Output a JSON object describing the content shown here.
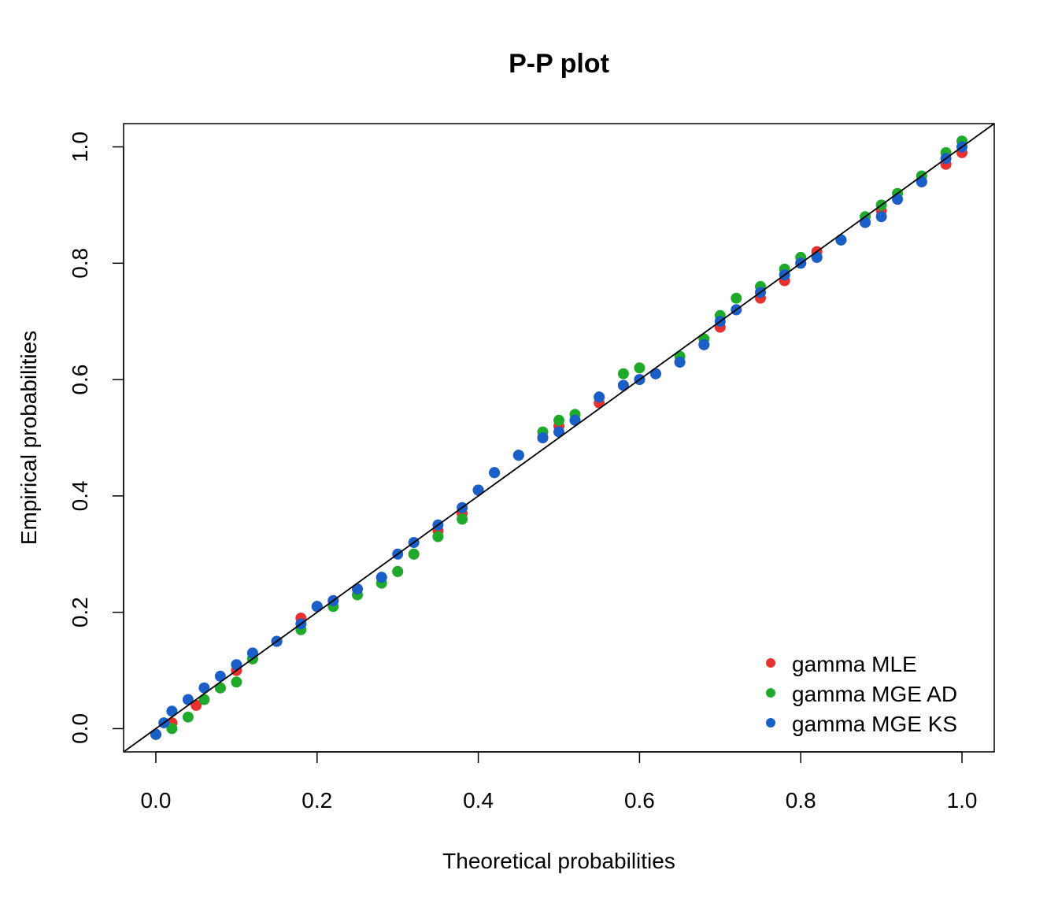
{
  "chart_data": {
    "type": "scatter",
    "title": "P-P plot",
    "xlabel": "Theoretical probabilities",
    "ylabel": "Empirical probabilities",
    "xlim": [
      -0.04,
      1.04
    ],
    "ylim": [
      -0.04,
      1.04
    ],
    "xticks": [
      "0.0",
      "0.2",
      "0.4",
      "0.6",
      "0.8",
      "1.0"
    ],
    "yticks": [
      "0.0",
      "0.2",
      "0.4",
      "0.6",
      "0.8",
      "1.0"
    ],
    "grid": false,
    "legend_position": "bottom-right",
    "reference_line": {
      "from": [
        -0.04,
        -0.04
      ],
      "to": [
        1.04,
        1.04
      ],
      "color": "#000000"
    },
    "series": [
      {
        "name": "gamma MLE",
        "color": "#e8312f",
        "points": [
          [
            0.0,
            -0.01
          ],
          [
            0.02,
            0.01
          ],
          [
            0.05,
            0.04
          ],
          [
            0.08,
            0.07
          ],
          [
            0.1,
            0.1
          ],
          [
            0.12,
            0.12
          ],
          [
            0.15,
            0.15
          ],
          [
            0.18,
            0.19
          ],
          [
            0.2,
            0.21
          ],
          [
            0.22,
            0.22
          ],
          [
            0.25,
            0.24
          ],
          [
            0.28,
            0.26
          ],
          [
            0.3,
            0.27
          ],
          [
            0.32,
            0.3
          ],
          [
            0.35,
            0.34
          ],
          [
            0.38,
            0.37
          ],
          [
            0.4,
            0.41
          ],
          [
            0.42,
            0.44
          ],
          [
            0.45,
            0.47
          ],
          [
            0.48,
            0.5
          ],
          [
            0.5,
            0.52
          ],
          [
            0.52,
            0.53
          ],
          [
            0.55,
            0.56
          ],
          [
            0.58,
            0.59
          ],
          [
            0.6,
            0.6
          ],
          [
            0.62,
            0.61
          ],
          [
            0.65,
            0.63
          ],
          [
            0.68,
            0.66
          ],
          [
            0.7,
            0.69
          ],
          [
            0.72,
            0.72
          ],
          [
            0.75,
            0.74
          ],
          [
            0.78,
            0.77
          ],
          [
            0.8,
            0.8
          ],
          [
            0.82,
            0.82
          ],
          [
            0.85,
            0.84
          ],
          [
            0.88,
            0.87
          ],
          [
            0.9,
            0.89
          ],
          [
            0.92,
            0.91
          ],
          [
            0.95,
            0.94
          ],
          [
            0.98,
            0.97
          ],
          [
            1.0,
            0.99
          ]
        ]
      },
      {
        "name": "gamma MGE AD",
        "color": "#1faa2c",
        "points": [
          [
            0.0,
            -0.01
          ],
          [
            0.02,
            0.0
          ],
          [
            0.04,
            0.02
          ],
          [
            0.06,
            0.05
          ],
          [
            0.08,
            0.07
          ],
          [
            0.1,
            0.08
          ],
          [
            0.12,
            0.12
          ],
          [
            0.15,
            0.15
          ],
          [
            0.18,
            0.17
          ],
          [
            0.2,
            0.21
          ],
          [
            0.22,
            0.21
          ],
          [
            0.25,
            0.23
          ],
          [
            0.28,
            0.25
          ],
          [
            0.3,
            0.27
          ],
          [
            0.32,
            0.3
          ],
          [
            0.35,
            0.33
          ],
          [
            0.38,
            0.36
          ],
          [
            0.4,
            0.41
          ],
          [
            0.42,
            0.44
          ],
          [
            0.45,
            0.47
          ],
          [
            0.48,
            0.51
          ],
          [
            0.5,
            0.53
          ],
          [
            0.52,
            0.54
          ],
          [
            0.55,
            0.57
          ],
          [
            0.58,
            0.61
          ],
          [
            0.6,
            0.62
          ],
          [
            0.62,
            0.61
          ],
          [
            0.65,
            0.64
          ],
          [
            0.68,
            0.67
          ],
          [
            0.7,
            0.71
          ],
          [
            0.72,
            0.74
          ],
          [
            0.75,
            0.76
          ],
          [
            0.78,
            0.79
          ],
          [
            0.8,
            0.81
          ],
          [
            0.82,
            0.81
          ],
          [
            0.85,
            0.84
          ],
          [
            0.88,
            0.88
          ],
          [
            0.9,
            0.9
          ],
          [
            0.92,
            0.92
          ],
          [
            0.95,
            0.95
          ],
          [
            0.98,
            0.99
          ],
          [
            1.0,
            1.01
          ]
        ]
      },
      {
        "name": "gamma MGE KS",
        "color": "#1a5fc8",
        "points": [
          [
            0.0,
            -0.01
          ],
          [
            0.01,
            0.01
          ],
          [
            0.02,
            0.03
          ],
          [
            0.04,
            0.05
          ],
          [
            0.06,
            0.07
          ],
          [
            0.08,
            0.09
          ],
          [
            0.1,
            0.11
          ],
          [
            0.12,
            0.13
          ],
          [
            0.15,
            0.15
          ],
          [
            0.18,
            0.18
          ],
          [
            0.2,
            0.21
          ],
          [
            0.22,
            0.22
          ],
          [
            0.25,
            0.24
          ],
          [
            0.28,
            0.26
          ],
          [
            0.3,
            0.3
          ],
          [
            0.32,
            0.32
          ],
          [
            0.35,
            0.35
          ],
          [
            0.38,
            0.38
          ],
          [
            0.4,
            0.41
          ],
          [
            0.42,
            0.44
          ],
          [
            0.45,
            0.47
          ],
          [
            0.48,
            0.5
          ],
          [
            0.5,
            0.51
          ],
          [
            0.52,
            0.53
          ],
          [
            0.55,
            0.57
          ],
          [
            0.58,
            0.59
          ],
          [
            0.6,
            0.6
          ],
          [
            0.62,
            0.61
          ],
          [
            0.65,
            0.63
          ],
          [
            0.68,
            0.66
          ],
          [
            0.7,
            0.7
          ],
          [
            0.72,
            0.72
          ],
          [
            0.75,
            0.75
          ],
          [
            0.78,
            0.78
          ],
          [
            0.8,
            0.8
          ],
          [
            0.82,
            0.81
          ],
          [
            0.85,
            0.84
          ],
          [
            0.88,
            0.87
          ],
          [
            0.9,
            0.88
          ],
          [
            0.92,
            0.91
          ],
          [
            0.95,
            0.94
          ],
          [
            0.98,
            0.98
          ],
          [
            1.0,
            1.0
          ]
        ]
      }
    ]
  }
}
